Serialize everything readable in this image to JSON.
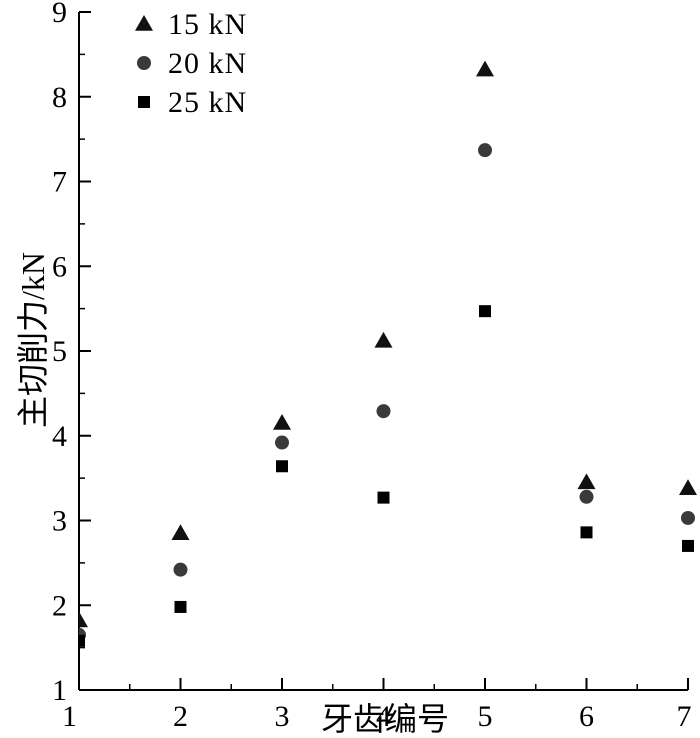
{
  "chart_data": {
    "type": "scatter",
    "xlabel": "牙齿编号",
    "ylabel": "主切削力/kN",
    "xlim": [
      1,
      7
    ],
    "ylim": [
      1,
      9
    ],
    "x_ticks": [
      1,
      2,
      3,
      4,
      5,
      6,
      7
    ],
    "y_ticks": [
      1,
      2,
      3,
      4,
      5,
      6,
      7,
      8,
      9
    ],
    "x": [
      1,
      2,
      3,
      4,
      5,
      6,
      7
    ],
    "legend_position": "top-left",
    "grid": false,
    "series": [
      {
        "name": "15 kN",
        "marker": "triangle",
        "color": "#111111",
        "values": [
          1.82,
          2.85,
          4.15,
          5.12,
          8.32,
          3.45,
          3.38
        ]
      },
      {
        "name": "20 kN",
        "marker": "circle",
        "color": "#3a3a3a",
        "values": [
          1.65,
          2.42,
          3.92,
          4.29,
          7.37,
          3.28,
          3.03
        ]
      },
      {
        "name": "25 kN",
        "marker": "square",
        "color": "#000000",
        "values": [
          1.58,
          1.98,
          3.64,
          3.27,
          5.47,
          2.86,
          2.7
        ]
      }
    ]
  }
}
